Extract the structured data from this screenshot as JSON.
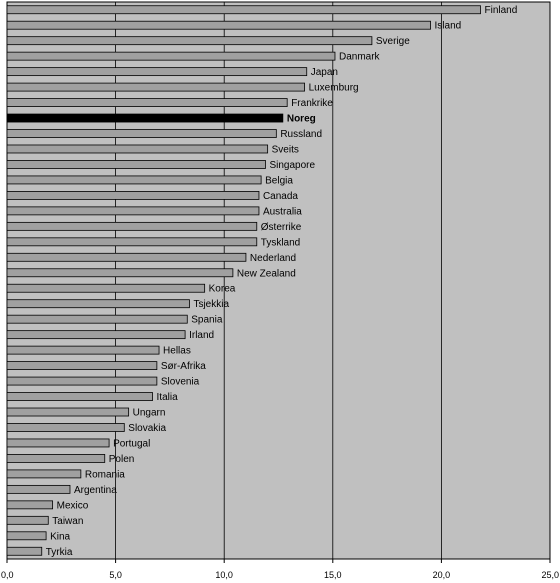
{
  "chart_data": {
    "type": "bar",
    "orientation": "horizontal",
    "categories": [
      "Finland",
      "Island",
      "Sverige",
      "Danmark",
      "Japan",
      "Luxemburg",
      "Frankrike",
      "Noreg",
      "Russland",
      "Sveits",
      "Singapore",
      "Belgia",
      "Canada",
      "Australia",
      "Østerrike",
      "Tyskland",
      "Nederland",
      "New Zealand",
      "Korea",
      "Tsjekkia",
      "Spania",
      "Irland",
      "Hellas",
      "Sør-Afrika",
      "Slovenia",
      "Italia",
      "Ungarn",
      "Slovakia",
      "Portugal",
      "Polen",
      "Romania",
      "Argentina",
      "Mexico",
      "Taiwan",
      "Kina",
      "Tyrkia"
    ],
    "values": [
      21.8,
      19.5,
      16.8,
      15.1,
      13.8,
      13.7,
      12.9,
      12.7,
      12.4,
      12.0,
      11.9,
      11.7,
      11.6,
      11.6,
      11.5,
      11.5,
      11.0,
      10.4,
      9.1,
      8.4,
      8.3,
      8.2,
      7.0,
      6.9,
      6.9,
      6.7,
      5.6,
      5.4,
      4.7,
      4.5,
      3.4,
      2.9,
      2.1,
      1.9,
      1.8,
      1.6
    ],
    "highlight": "Noreg",
    "xlim": [
      0,
      25
    ],
    "x_ticks": [
      "0,0",
      "5,0",
      "10,0",
      "15,0",
      "20,0",
      "25,0"
    ],
    "title": "",
    "xlabel": "",
    "ylabel": "",
    "grid": "vertical",
    "colors": {
      "plot_background": "#c0c0c0",
      "bar": "#a0a0a0",
      "bar_highlight": "#000000",
      "bar_border": "#000000",
      "grid": "#000000"
    }
  }
}
